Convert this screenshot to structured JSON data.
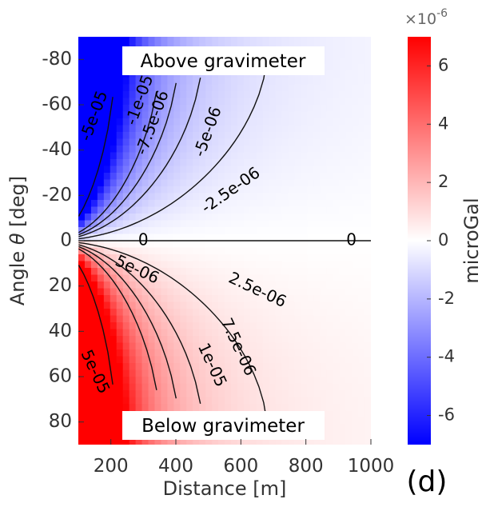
{
  "chart_data": {
    "type": "heatmap",
    "panel_label": "(d)",
    "xlabel": "Distance [m]",
    "ylabel_prefix": "Angle ",
    "ylabel_symbol": "θ",
    "ylabel_suffix": " [deg]",
    "xlim": [
      100,
      1000
    ],
    "ylim": [
      -90,
      90
    ],
    "y_reversed": true,
    "x_ticks": [
      200,
      400,
      600,
      800,
      1000
    ],
    "y_ticks": [
      -80,
      -60,
      -40,
      -20,
      0,
      20,
      40,
      60,
      80
    ],
    "grid": false,
    "annotations": [
      {
        "text": "Above gravimeter",
        "x": 380,
        "y": -80
      },
      {
        "text": "Below gravimeter",
        "x": 380,
        "y": 82
      }
    ],
    "colorbar": {
      "label": "microGal",
      "exponent_base": "×10",
      "exponent_power": "-6",
      "range": [
        -7,
        7
      ],
      "ticks": [
        -6,
        -4,
        -2,
        0,
        2,
        4,
        6
      ],
      "tick_labels": [
        "-6",
        "-4",
        "-2",
        "0",
        "2",
        "4",
        "6"
      ],
      "colormap": {
        "negative": "#0000ff",
        "zero": "#ffffff",
        "positive": "#ff0000"
      }
    },
    "contours": [
      {
        "level": "-5e-05",
        "label_at": [
          150,
          -55
        ]
      },
      {
        "level": "-1e-05",
        "label_at": [
          290,
          -62
        ]
      },
      {
        "level": "-7.5e-06",
        "label_at": [
          330,
          -52
        ]
      },
      {
        "level": "-5e-06",
        "label_at": [
          500,
          -48
        ]
      },
      {
        "level": "-2.5e-06",
        "label_at": [
          570,
          -22
        ]
      },
      {
        "level": "0",
        "label_at": [
          300,
          0
        ]
      },
      {
        "level": "0",
        "label_at": [
          940,
          0
        ]
      },
      {
        "level": "5e-06",
        "label_at": [
          280,
          13
        ]
      },
      {
        "level": "2.5e-06",
        "label_at": [
          650,
          22
        ]
      },
      {
        "level": "7.5e-06",
        "label_at": [
          590,
          47
        ]
      },
      {
        "level": "1e-05",
        "label_at": [
          510,
          55
        ]
      },
      {
        "level": "5e-05",
        "label_at": [
          150,
          58
        ]
      }
    ]
  }
}
